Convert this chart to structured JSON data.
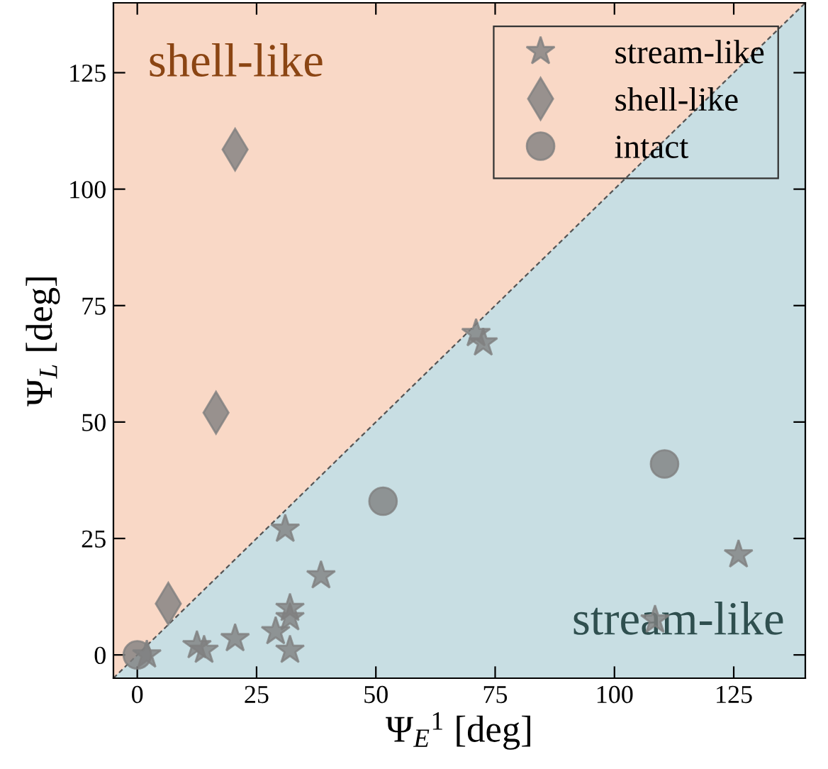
{
  "chart_data": {
    "type": "scatter",
    "xlabel": "Ψ$_{E}$$^{1}$ [deg]",
    "ylabel": "Ψ$_{L}$ [deg]",
    "xlim": [
      -5,
      140
    ],
    "ylim": [
      -5,
      140
    ],
    "xticks": [
      0,
      25,
      50,
      75,
      100,
      125
    ],
    "yticks": [
      0,
      25,
      50,
      75,
      100,
      125
    ],
    "grid": false,
    "legend": "top right",
    "annotations": [
      "shell-like",
      "stream-like"
    ],
    "series": [
      {
        "type": "area",
        "color": "#c8dee3",
        "line_style": "dashed",
        "marker": "none",
        "x": [
          -5,
          140
        ],
        "values": [
          -5,
          140
        ]
      },
      {
        "name": "stream-like",
        "marker": "star",
        "color": "#808080",
        "x": [
          2,
          12.5,
          14,
          20.5,
          29,
          31,
          32,
          32,
          32,
          38.5,
          71,
          72.5,
          108.5,
          126
        ],
        "values": [
          0,
          2,
          1,
          3.5,
          5,
          27,
          10,
          8,
          1,
          17,
          69,
          67,
          7.5,
          21.5
        ]
      },
      {
        "name": "shell-like",
        "marker": "diamond",
        "color": "#808080",
        "x": [
          20.5,
          16.5,
          6.5
        ],
        "values": [
          108.5,
          52,
          11
        ]
      },
      {
        "name": "intact",
        "marker": "circle",
        "color": "#808080",
        "x": [
          0,
          51.5,
          110.5
        ],
        "values": [
          0,
          33,
          41
        ]
      }
    ]
  }
}
